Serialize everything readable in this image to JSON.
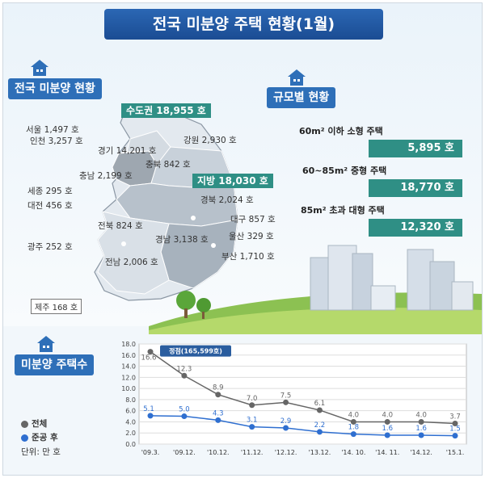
{
  "title": "전국 미분양 주택 현황(1월)",
  "sections": {
    "national": "전국 미분양 현황",
    "by_size": "규모별 현황",
    "count": "미분양  주택수"
  },
  "regions": {
    "capital": "수도권 18,955 호",
    "local": "지방 18,030 호",
    "seoul": "서울 1,497 호",
    "incheon": "인천 3,257 호",
    "gyeonggi": "경기 14,201 호",
    "gangwon": "강원 2,930 호",
    "chungbuk": "충북 842 호",
    "chungnam": "충남 2,199 호",
    "sejong": "세종 295 호",
    "daejeon": "대전 456 호",
    "gyeongbuk": "경북 2,024 호",
    "jeonbuk": "전북 824 호",
    "daegu": "대구 857 호",
    "gyeongnam": "경남 3,138 호",
    "ulsan": "울산 329 호",
    "gwangju": "광주 252 호",
    "jeonnam": "전남 2,006 호",
    "busan": "부산 1,710 호",
    "jeju": "제주 168 호"
  },
  "by_size": [
    {
      "label": "60m² 이하 소형 주택",
      "value": "5,895 호"
    },
    {
      "label": "60~85m²  중형 주택",
      "value": "18,770 호"
    },
    {
      "label": "85m² 초과 대형 주택",
      "value": "12,320 호"
    }
  ],
  "legend": {
    "total": "전체",
    "after": "준공 후",
    "unit": "단위: 만 호"
  },
  "colors": {
    "total": "#666666",
    "after": "#2f6fd0",
    "banner": "#1f55a0",
    "teal": "#2f8f85"
  },
  "chart_data": {
    "type": "line",
    "categories": [
      "'09.3.",
      "'09.12.",
      "'10.12.",
      "'11.12.",
      "'12.12.",
      "'13.12.",
      "'14. 10.",
      "'14. 11.",
      "'14.12.",
      "'15.1."
    ],
    "series": [
      {
        "name": "전체",
        "values": [
          16.6,
          12.3,
          8.9,
          7.0,
          7.5,
          6.1,
          4.0,
          4.0,
          4.0,
          3.7
        ]
      },
      {
        "name": "준공 후",
        "values": [
          5.1,
          5.0,
          4.3,
          3.1,
          2.9,
          2.2,
          1.8,
          1.6,
          1.6,
          1.5
        ]
      }
    ],
    "value_labels": {
      "전체": [
        "16.6",
        "12.3",
        "8.9",
        "7.0",
        "7.5",
        "6.1",
        "4.0",
        "4.0",
        "4.0",
        "3.7"
      ],
      "준공 후": [
        "5.1",
        "5.0",
        "4.3",
        "3.1",
        "2.9",
        "2.2",
        "1.8",
        "1.6",
        "1.6",
        "1.5"
      ]
    },
    "annotation": "정점(165,599호)",
    "ylim": [
      0,
      18
    ],
    "yticks": [
      "0.0",
      "2.0",
      "4.0",
      "6.0",
      "8.0",
      "10.0",
      "12.0",
      "14.0",
      "16.0",
      "18.0"
    ],
    "grid": true
  }
}
